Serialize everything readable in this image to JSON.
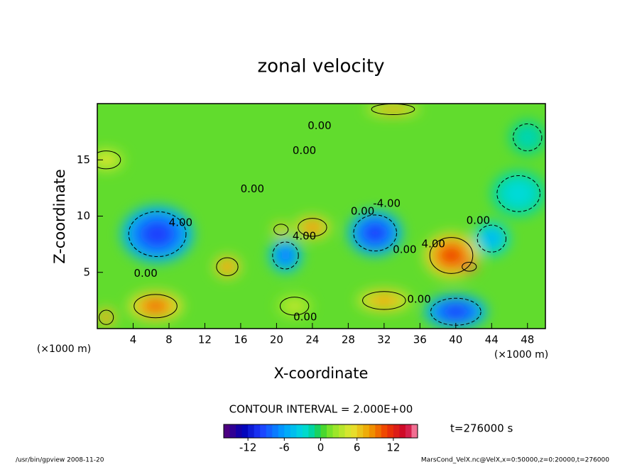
{
  "chart_data": {
    "type": "contour",
    "title": "zonal velocity",
    "x_label": "X-coordinate",
    "y_label": "Z-coordinate",
    "x_units": "(×1000 m)",
    "y_units": "(×1000 m)",
    "xlim": [
      0,
      50
    ],
    "xticks": [
      4,
      8,
      12,
      16,
      20,
      24,
      28,
      32,
      36,
      40,
      44,
      48
    ],
    "ylim": [
      0,
      20
    ],
    "yticks": [
      5,
      10,
      15
    ],
    "contour_interval_label": "CONTOUR INTERVAL = 2.000E+00",
    "time_label": "t=276000 s",
    "clim": [
      -16,
      16
    ],
    "cticks": [
      -12,
      -6,
      0,
      6,
      12
    ],
    "field_background": 1,
    "blobs": [
      {
        "x": 6.7,
        "z": 8.4,
        "rx": 4,
        "rz": 2.5,
        "value": -10
      },
      {
        "x": 6.5,
        "z": 2,
        "rx": 3,
        "rz": 1.3,
        "value": 10
      },
      {
        "x": 14.5,
        "z": 5.5,
        "rx": 1.5,
        "rz": 1,
        "value": 9
      },
      {
        "x": 21,
        "z": 6.5,
        "rx": 1.8,
        "rz": 1.5,
        "value": -8
      },
      {
        "x": 24,
        "z": 9,
        "rx": 2,
        "rz": 1,
        "value": 9
      },
      {
        "x": 20.5,
        "z": 8.8,
        "rx": 1,
        "rz": 0.6,
        "value": 8
      },
      {
        "x": 31,
        "z": 8.5,
        "rx": 3,
        "rz": 2,
        "value": -10
      },
      {
        "x": 39.5,
        "z": 6.5,
        "rx": 3,
        "rz": 2,
        "value": 11
      },
      {
        "x": 41.5,
        "z": 5.5,
        "rx": 1,
        "rz": 0.5,
        "value": 15
      },
      {
        "x": 40,
        "z": 1.5,
        "rx": 3.5,
        "rz": 1.5,
        "value": -10
      },
      {
        "x": 32,
        "z": 2.5,
        "rx": 3,
        "rz": 1,
        "value": 8
      },
      {
        "x": 22,
        "z": 2,
        "rx": 2,
        "rz": 1,
        "value": 4
      },
      {
        "x": 44,
        "z": 8,
        "rx": 2,
        "rz": 1.5,
        "value": -5
      },
      {
        "x": 1,
        "z": 1,
        "rx": 1,
        "rz": 0.8,
        "value": 10
      },
      {
        "x": 1,
        "z": 15,
        "rx": 2,
        "rz": 1,
        "value": 5
      },
      {
        "x": 33,
        "z": 19.5,
        "rx": 3,
        "rz": 0.6,
        "value": 8
      },
      {
        "x": 47,
        "z": 12,
        "rx": 3,
        "rz": 2,
        "value": -3
      },
      {
        "x": 48,
        "z": 17,
        "rx": 2,
        "rz": 1.5,
        "value": -2
      }
    ],
    "contour_labels": [
      {
        "text": "0.00",
        "x": 24.8,
        "z": 18.0
      },
      {
        "text": "0.00",
        "x": 23.1,
        "z": 15.8
      },
      {
        "text": "0.00",
        "x": 17.3,
        "z": 12.4
      },
      {
        "text": "0.00",
        "x": 29.6,
        "z": 10.4
      },
      {
        "text": "-4.00",
        "x": 32.3,
        "z": 11.1
      },
      {
        "text": "0.00",
        "x": 42.5,
        "z": 9.6
      },
      {
        "text": "4.00",
        "x": 37.5,
        "z": 7.5
      },
      {
        "text": "0.00",
        "x": 34.3,
        "z": 7.0
      },
      {
        "text": "4.00",
        "x": 9.3,
        "z": 9.4
      },
      {
        "text": "4.00",
        "x": 23.1,
        "z": 8.2
      },
      {
        "text": "0.00",
        "x": 5.4,
        "z": 4.9
      },
      {
        "text": "0.00",
        "x": 23.2,
        "z": 1.0
      },
      {
        "text": "0.00",
        "x": 35.9,
        "z": 2.6
      }
    ]
  },
  "footer": {
    "left": "/usr/bin/gpview  2008-11-20",
    "right": "MarsCond_VelX.nc@VelX,x=0:50000,z=0:20000,t=276000"
  }
}
